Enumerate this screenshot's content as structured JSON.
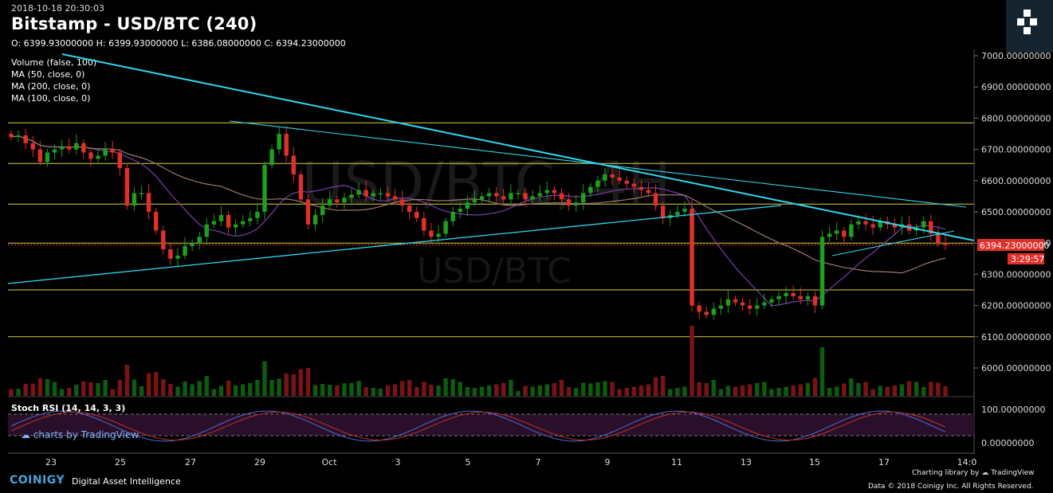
{
  "header": {
    "timestamp": "2018-10-18 20:30:03",
    "title": "Bitstamp - USD/BTC (240)",
    "ohlc": "O: 6399.93000000 H: 6399.93000000 L: 6386.08000000 C: 6394.23000000"
  },
  "indicators": [
    "Volume (false, 100)",
    "MA (50, close, 0)",
    "MA (200, close, 0)",
    "MA (100, close, 0)"
  ],
  "watermark": {
    "pair": "USD/BTC",
    "big": "USD/BTC, 4H"
  },
  "stoch_label": "Stoch RSI (14, 14, 3, 3)",
  "tv_badge": "charts by TradingView",
  "price_tag": {
    "value": "6394.23000000",
    "countdown": "3:29:57"
  },
  "footer": {
    "brand": "COINIGY",
    "tagline": "Digital Asset Intelligence",
    "charting": "Charting library by",
    "tv": "TradingView",
    "copyright": "Data © 2018 Coinigy Inc. All Rights Reserved."
  },
  "colors": {
    "up": "#1f9e1f",
    "down": "#e0302a",
    "trend": "#2fd7f0",
    "hline": "#d7d23a",
    "ma50": "#7a3fb0",
    "ma100": "#a07a70",
    "ma200": "#a07a70",
    "rsi_k": "#4f6bd8",
    "rsi_d": "#c23030"
  },
  "chart_data": {
    "type": "candlestick",
    "price_axis": {
      "ticks": [
        6000,
        6100,
        6200,
        6300,
        6400,
        6500,
        6600,
        6700,
        6800,
        6900,
        7000
      ],
      "tick_labels": [
        "6000.00000000",
        "6100.00000000",
        "6200.00000000",
        "6300.00000000",
        "6400.00000000",
        "6500.00000000",
        "6600.00000000",
        "6700.00000000",
        "6800.00000000",
        "6900.00000000",
        "7000.00000000"
      ]
    },
    "rsi_axis": {
      "tick_labels": [
        "100.00000000",
        "0.00000000"
      ]
    },
    "x_labels": [
      "23",
      "25",
      "27",
      "29",
      "Oct",
      "3",
      "5",
      "7",
      "9",
      "11",
      "13",
      "15",
      "17",
      "14:0"
    ],
    "horizontal_levels": [
      6785,
      6655,
      6525,
      6400,
      6250,
      6100
    ],
    "candles_close": [
      6740,
      6745,
      6720,
      6700,
      6660,
      6690,
      6700,
      6710,
      6700,
      6720,
      6690,
      6670,
      6680,
      6700,
      6690,
      6640,
      6520,
      6560,
      6560,
      6500,
      6440,
      6380,
      6350,
      6360,
      6390,
      6400,
      6420,
      6460,
      6470,
      6490,
      6450,
      6460,
      6470,
      6480,
      6500,
      6650,
      6700,
      6750,
      6680,
      6620,
      6540,
      6460,
      6490,
      6520,
      6540,
      6530,
      6545,
      6555,
      6570,
      6550,
      6560,
      6560,
      6550,
      6540,
      6520,
      6500,
      6480,
      6440,
      6420,
      6430,
      6470,
      6500,
      6510,
      6530,
      6540,
      6550,
      6560,
      6550,
      6540,
      6560,
      6560,
      6540,
      6550,
      6560,
      6570,
      6560,
      6540,
      6520,
      6530,
      6560,
      6580,
      6600,
      6620,
      6610,
      6600,
      6590,
      6580,
      6570,
      6560,
      6520,
      6480,
      6490,
      6500,
      6510,
      6200,
      6180,
      6170,
      6190,
      6200,
      6220,
      6210,
      6200,
      6190,
      6200,
      6210,
      6220,
      6230,
      6240,
      6230,
      6220,
      6230,
      6200,
      6420,
      6430,
      6440,
      6420,
      6460,
      6470,
      6460,
      6450,
      6470,
      6460,
      6450,
      6460,
      6440,
      6450,
      6470,
      6430,
      6400,
      6394
    ]
  }
}
